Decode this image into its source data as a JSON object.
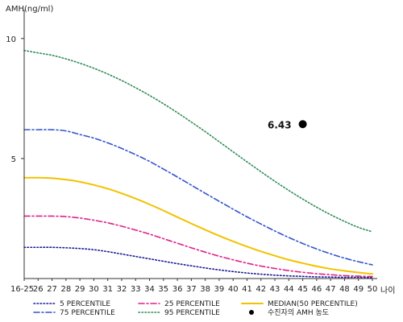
{
  "chart_data": {
    "type": "line",
    "title": "",
    "ylabel": "AMH(ng/ml)",
    "xlabel": "나이",
    "categories": [
      "16-25",
      "26",
      "27",
      "28",
      "29",
      "30",
      "31",
      "32",
      "33",
      "34",
      "35",
      "36",
      "37",
      "38",
      "39",
      "40",
      "41",
      "42",
      "43",
      "44",
      "45",
      "46",
      "47",
      "48",
      "49",
      "50"
    ],
    "yticks": [
      5,
      10
    ],
    "ylim": [
      0,
      11
    ],
    "grid": false,
    "series": [
      {
        "name": "5 PERCENTILE",
        "color": "#1a1a99",
        "style": "dotted",
        "values": [
          1.3,
          1.3,
          1.3,
          1.28,
          1.25,
          1.2,
          1.12,
          1.02,
          0.92,
          0.82,
          0.72,
          0.62,
          0.53,
          0.44,
          0.36,
          0.29,
          0.23,
          0.18,
          0.14,
          0.11,
          0.09,
          0.07,
          0.06,
          0.05,
          0.05,
          0.04
        ]
      },
      {
        "name": "25 PERCENTILE",
        "color": "#e0218a",
        "style": "dashdot",
        "values": [
          2.6,
          2.6,
          2.6,
          2.58,
          2.52,
          2.43,
          2.32,
          2.18,
          2.02,
          1.85,
          1.66,
          1.47,
          1.28,
          1.1,
          0.93,
          0.78,
          0.64,
          0.52,
          0.42,
          0.33,
          0.26,
          0.2,
          0.16,
          0.12,
          0.1,
          0.08
        ]
      },
      {
        "name": "MEDIAN(50 PERCENTILE)",
        "color": "#f2c200",
        "style": "solid",
        "values": [
          4.2,
          4.2,
          4.18,
          4.12,
          4.03,
          3.9,
          3.74,
          3.55,
          3.33,
          3.09,
          2.83,
          2.56,
          2.29,
          2.03,
          1.78,
          1.55,
          1.33,
          1.13,
          0.95,
          0.78,
          0.64,
          0.51,
          0.4,
          0.32,
          0.25,
          0.19
        ]
      },
      {
        "name": "75 PERCENTILE",
        "color": "#3355cc",
        "style": "dashdot",
        "values": [
          6.2,
          6.2,
          6.2,
          6.15,
          6.0,
          5.85,
          5.65,
          5.42,
          5.16,
          4.88,
          4.56,
          4.23,
          3.89,
          3.55,
          3.22,
          2.89,
          2.57,
          2.27,
          1.98,
          1.71,
          1.46,
          1.23,
          1.03,
          0.85,
          0.7,
          0.57
        ]
      },
      {
        "name": "95 PERCENTILE",
        "color": "#2e8b57",
        "style": "dotted",
        "values": [
          9.5,
          9.4,
          9.3,
          9.15,
          8.97,
          8.76,
          8.52,
          8.25,
          7.95,
          7.63,
          7.28,
          6.91,
          6.52,
          6.12,
          5.7,
          5.28,
          4.86,
          4.45,
          4.05,
          3.67,
          3.31,
          2.97,
          2.66,
          2.38,
          2.13,
          1.95
        ]
      }
    ],
    "patient": {
      "name": "수진자의 AMH 농도",
      "x": "45",
      "y": 6.43,
      "label": "6.43",
      "color": "#000000"
    },
    "legend_placement": "bottom"
  }
}
